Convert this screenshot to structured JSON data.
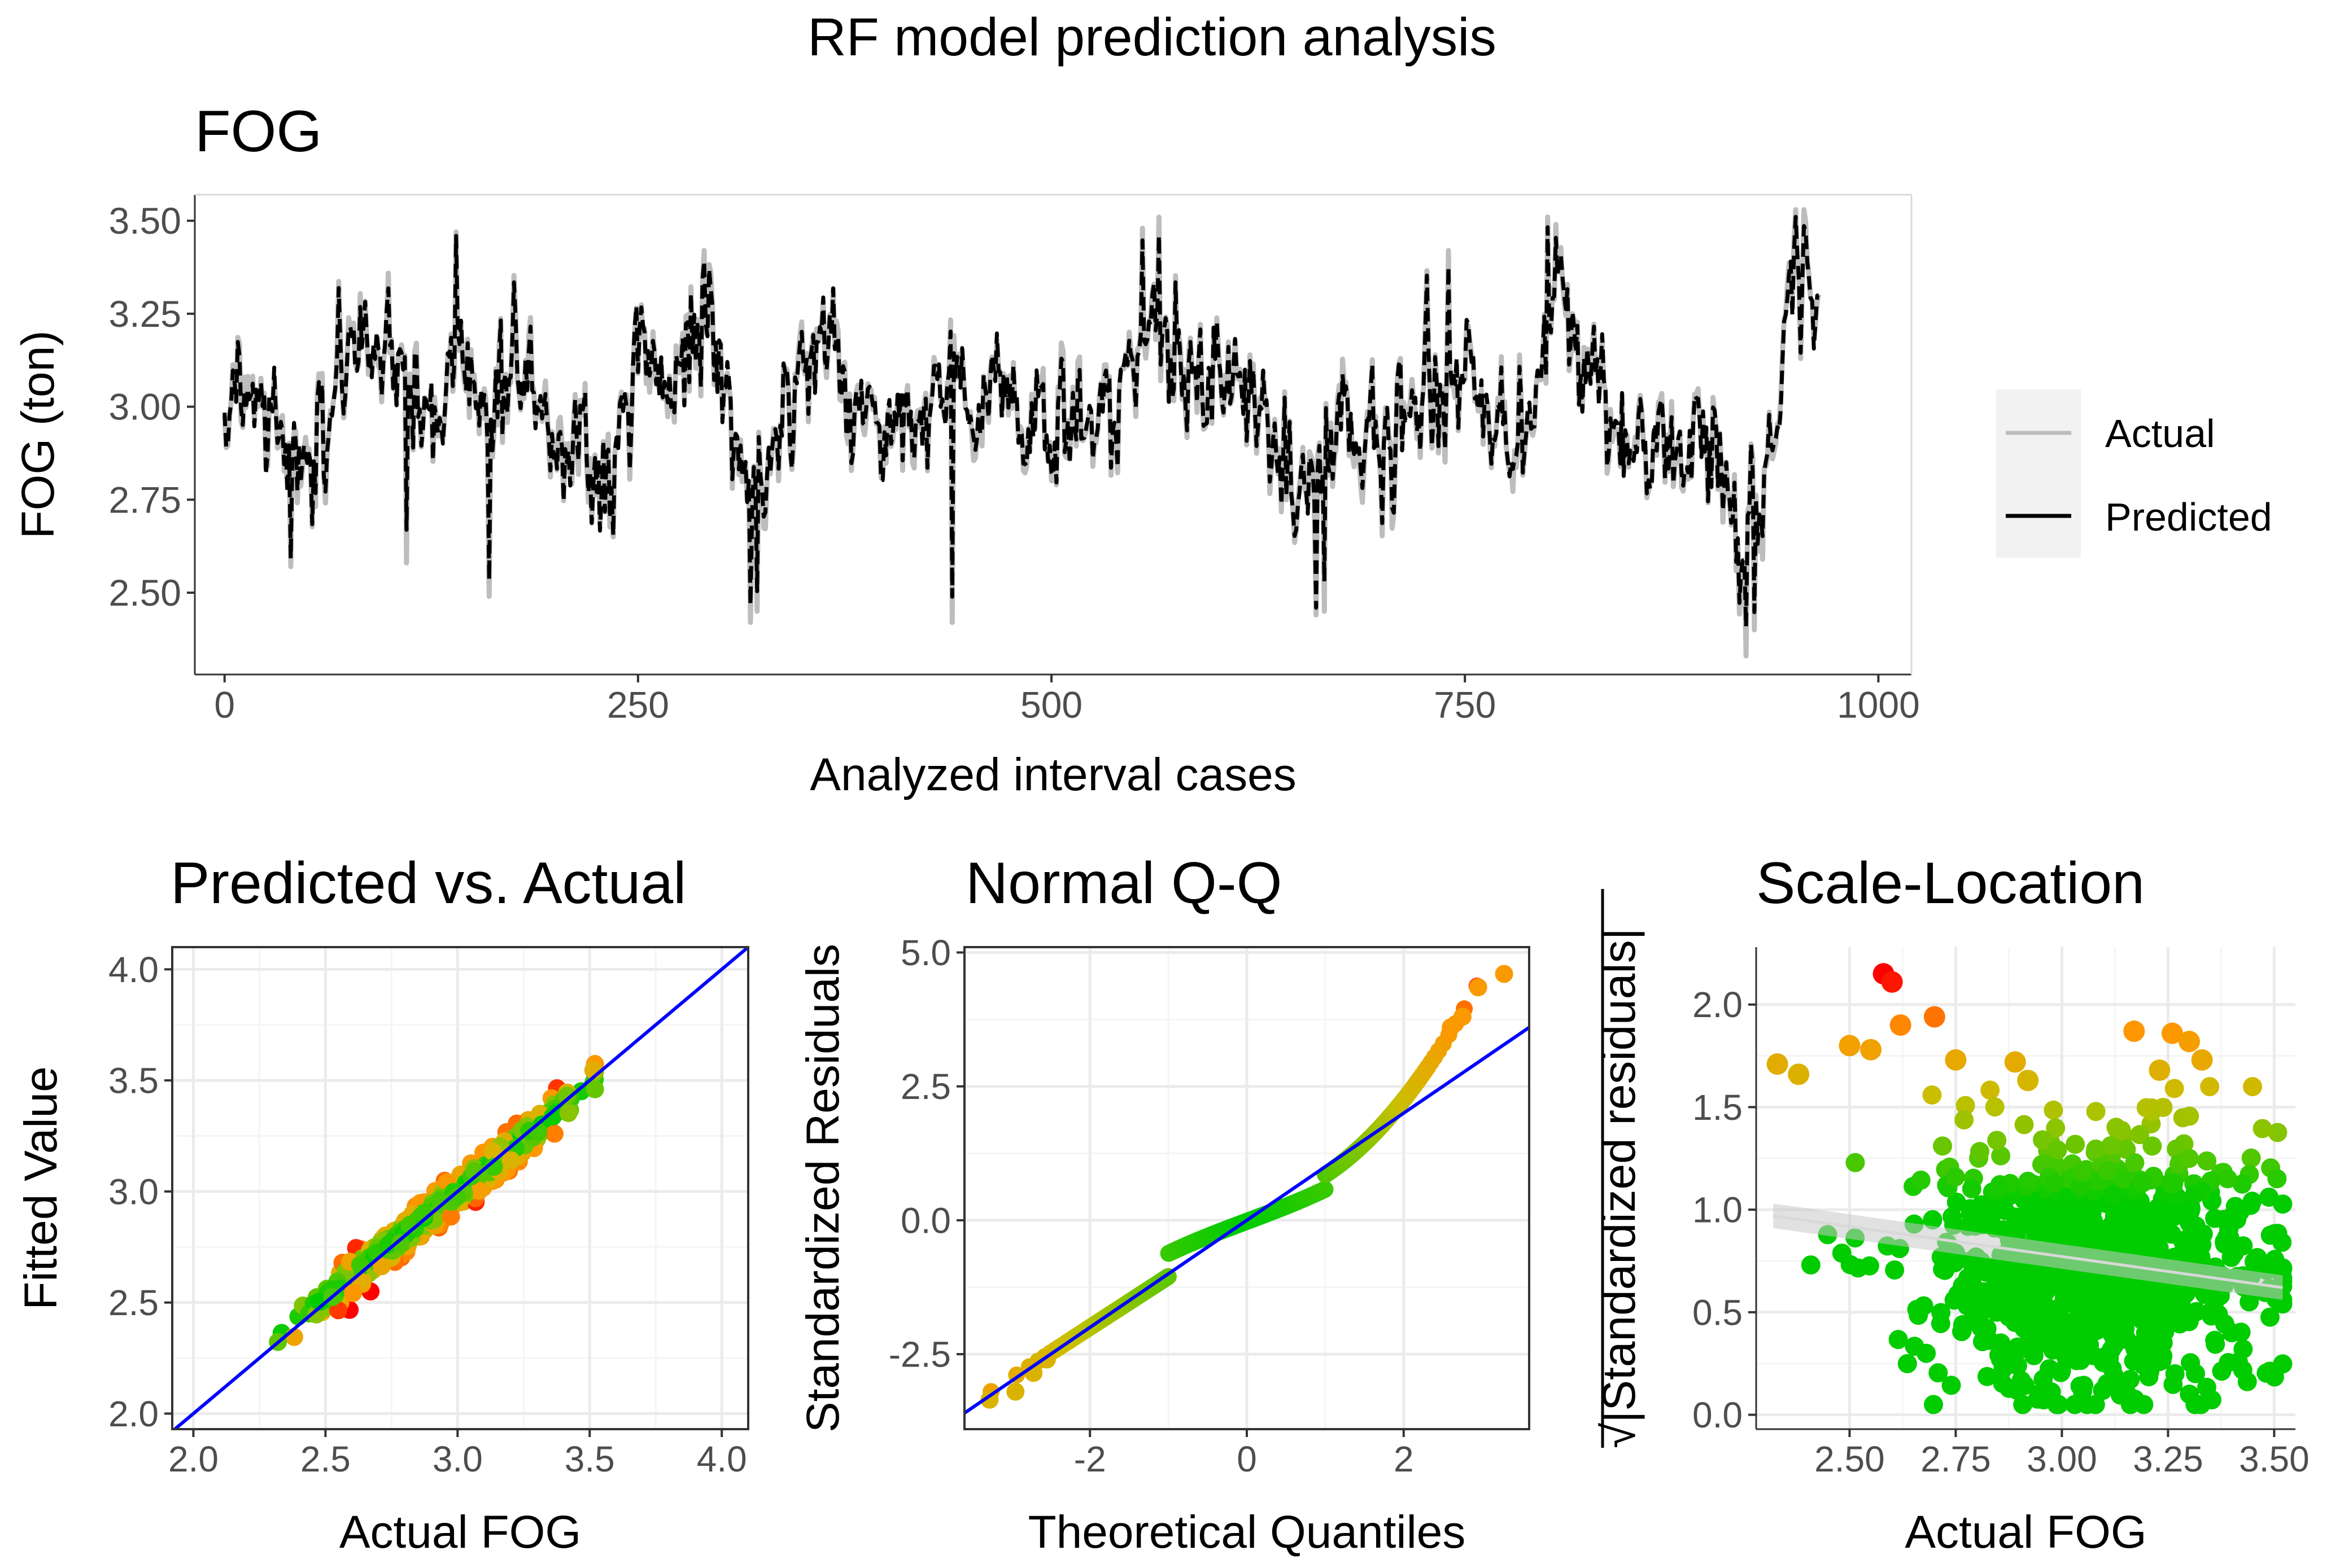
{
  "figure": {
    "title": "RF model prediction analysis"
  },
  "colors": {
    "actual_line": "#bdbdbd",
    "predicted_line": "#000000",
    "reference_line": "#0000ff",
    "panel_border": "#333333",
    "grid_major": "#ebebeb",
    "grid_minor": "#f5f5f5",
    "point_low": "#00cc00",
    "point_mid": "#c8c000",
    "point_high": "#ff0000",
    "legend_bg": "#f2f2f2",
    "text_dark": "#000000",
    "tick_text": "#4d4d4d"
  },
  "chart_data": [
    {
      "id": "timeseries",
      "type": "line",
      "title": "FOG",
      "xlabel": "Analyzed interval cases",
      "ylabel": "FOG (ton)",
      "xlim": [
        -18,
        1020
      ],
      "ylim": [
        2.28,
        3.57
      ],
      "xticks": [
        0,
        250,
        500,
        750,
        1000
      ],
      "xtick_labels": [
        "0",
        "250",
        "500",
        "750",
        "1000"
      ],
      "yticks": [
        2.5,
        2.75,
        3.0,
        3.25,
        3.5
      ],
      "ytick_labels": [
        "2.50",
        "2.75",
        "3.00",
        "3.25",
        "3.50"
      ],
      "legend": {
        "position": "right",
        "entries": [
          "Actual",
          "Predicted"
        ]
      },
      "n_points": 965,
      "anchors": {
        "x": [
          0,
          10,
          25,
          45,
          60,
          75,
          95,
          110,
          130,
          140,
          160,
          175,
          195,
          215,
          235,
          250,
          270,
          290,
          305,
          315,
          325,
          345,
          365,
          385,
          405,
          425,
          440,
          460,
          475,
          490,
          510,
          530,
          550,
          565,
          580,
          600,
          620,
          640,
          650,
          665,
          680,
          700,
          720,
          740,
          760,
          780,
          800,
          810,
          825,
          845,
          860,
          875,
          890,
          905,
          925,
          940,
          950,
          965
        ],
        "y": [
          2.95,
          3.05,
          3.0,
          2.75,
          2.95,
          3.15,
          3.2,
          3.0,
          2.95,
          3.25,
          2.95,
          3.15,
          2.95,
          2.9,
          2.85,
          3.2,
          3.05,
          3.25,
          3.1,
          2.75,
          2.85,
          3.05,
          3.15,
          3.0,
          3.05,
          2.95,
          3.1,
          3.0,
          3.1,
          2.95,
          2.95,
          2.95,
          3.1,
          3.3,
          3.05,
          3.1,
          3.0,
          2.85,
          2.75,
          2.85,
          3.0,
          2.9,
          3.05,
          3.1,
          3.05,
          2.85,
          3.2,
          3.3,
          3.05,
          3.0,
          2.85,
          2.85,
          2.95,
          2.85,
          2.7,
          3.0,
          3.35,
          3.25
        ],
        "spikes": [
          [
            140,
            3.47
          ],
          [
            290,
            3.42
          ],
          [
            318,
            2.42
          ],
          [
            322,
            2.45
          ],
          [
            440,
            2.42
          ],
          [
            440,
            2.42
          ],
          [
            555,
            3.48
          ],
          [
            565,
            3.51
          ],
          [
            660,
            2.44
          ],
          [
            665,
            2.45
          ],
          [
            740,
            3.42
          ],
          [
            800,
            3.51
          ],
          [
            805,
            3.49
          ],
          [
            920,
            2.33
          ],
          [
            925,
            2.4
          ],
          [
            950,
            3.53
          ],
          [
            955,
            3.53
          ],
          [
            160,
            2.49
          ],
          [
            40,
            2.57
          ],
          [
            110,
            2.58
          ]
        ]
      }
    },
    {
      "id": "predicted_vs_actual",
      "type": "scatter",
      "title": "Predicted vs. Actual",
      "xlabel": "Actual FOG",
      "ylabel": "Fitted Value",
      "xlim": [
        1.92,
        4.1
      ],
      "ylim": [
        1.93,
        4.1
      ],
      "xticks": [
        2.0,
        2.5,
        3.0,
        3.5,
        4.0
      ],
      "xtick_labels": [
        "2.0",
        "2.5",
        "3.0",
        "3.5",
        "4.0"
      ],
      "yticks": [
        2.0,
        2.5,
        3.0,
        3.5,
        4.0
      ],
      "ytick_labels": [
        "2.0",
        "2.5",
        "3.0",
        "3.5",
        "4.0"
      ],
      "reference_line": {
        "slope": 1,
        "intercept": 0
      },
      "x_range": [
        2.32,
        3.52
      ],
      "n_points": 900
    },
    {
      "id": "normal_qq",
      "type": "scatter",
      "title": "Normal Q-Q",
      "xlabel": "Theoretical Quantiles",
      "ylabel": "Standardized Residuals",
      "xlim": [
        -3.6,
        3.6
      ],
      "ylim": [
        -3.9,
        5.1
      ],
      "xticks": [
        -2,
        0,
        2
      ],
      "xtick_labels": [
        "-2",
        "0",
        "2"
      ],
      "yticks": [
        -2.5,
        0,
        2.5,
        5.0
      ],
      "ytick_labels": [
        "-2.5",
        "0.0",
        "2.5",
        "5.0"
      ],
      "reference_line": {
        "slope": 1.0,
        "intercept": 0.0
      },
      "qq_extremes": {
        "low": [
          -3.35,
          -3.2,
          -2.85,
          -2.6
        ],
        "high": [
          4.6,
          4.35,
          3.8,
          3.6
        ]
      },
      "n_points": 900
    },
    {
      "id": "scale_location",
      "type": "scatter",
      "title": "Scale-Location",
      "xlabel": "Actual FOG",
      "ylabel": "√|Standardized residuals|",
      "ylabel_text": "|Standardized residuals|",
      "ylabel_root": "√",
      "xlim": [
        2.28,
        3.55
      ],
      "ylim": [
        -0.07,
        2.28
      ],
      "xticks": [
        2.5,
        2.75,
        3.0,
        3.25,
        3.5
      ],
      "xtick_labels": [
        "2.50",
        "2.75",
        "3.00",
        "3.25",
        "3.50"
      ],
      "yticks": [
        0.0,
        0.5,
        1.0,
        1.5,
        2.0
      ],
      "ytick_labels": [
        "0.0",
        "0.5",
        "1.0",
        "1.5",
        "2.0"
      ],
      "smooth_line": {
        "x": [
          2.32,
          3.52
        ],
        "y": [
          0.97,
          0.62
        ]
      },
      "outliers": [
        [
          2.58,
          2.15
        ],
        [
          2.6,
          2.11
        ],
        [
          2.7,
          1.94
        ],
        [
          2.62,
          1.9
        ],
        [
          2.5,
          1.8
        ],
        [
          2.55,
          1.78
        ],
        [
          3.17,
          1.87
        ],
        [
          3.26,
          1.86
        ],
        [
          3.3,
          1.82
        ],
        [
          3.33,
          1.73
        ],
        [
          2.33,
          1.71
        ],
        [
          2.38,
          1.66
        ],
        [
          2.75,
          1.73
        ],
        [
          2.89,
          1.72
        ],
        [
          2.92,
          1.63
        ],
        [
          3.23,
          1.68
        ]
      ],
      "n_points": 900
    }
  ]
}
